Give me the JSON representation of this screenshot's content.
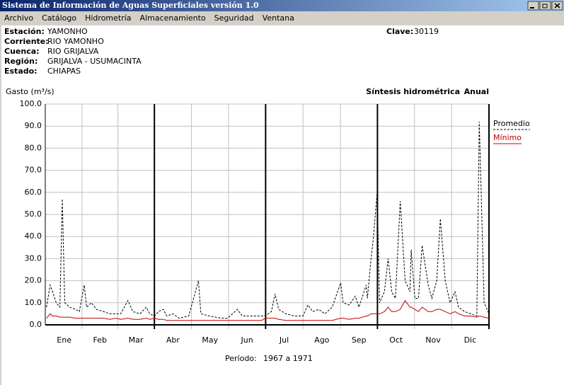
{
  "window": {
    "title": "Sistema de Información de Aguas Superficiales  versión 1.0",
    "menu": [
      "Archivo",
      "Catálogo",
      "Hidrometría",
      "Almacenamiento",
      "Seguridad",
      "Ventana"
    ]
  },
  "station": {
    "fields": [
      {
        "label": "Estación:",
        "value": "YAMONHO"
      },
      {
        "label": "Corriente:",
        "value": "RIO YAMONHO"
      },
      {
        "label": "Cuenca:",
        "value": "RIO GRIJALVA"
      },
      {
        "label": "Región:",
        "value": "GRIJALVA - USUMACINTA"
      },
      {
        "label": "Estado:",
        "value": "CHIAPAS"
      }
    ],
    "clave_label": "Clave:",
    "clave": "30119"
  },
  "chart_data": {
    "type": "line",
    "title": "Síntesis hidrométrica",
    "subtitle": "Anual",
    "y_label": "Gasto (m³/s)",
    "x": [
      1,
      4,
      6,
      9,
      12,
      14,
      16,
      20,
      25,
      28,
      32,
      34,
      38,
      42,
      48,
      53,
      58,
      62,
      68,
      72,
      78,
      83,
      86,
      90,
      93,
      97,
      100,
      105,
      110,
      118,
      126,
      128,
      135,
      145,
      150,
      158,
      162,
      170,
      178,
      181,
      186,
      189,
      192,
      198,
      205,
      212,
      216,
      220,
      225,
      230,
      236,
      243,
      245,
      250,
      255,
      258,
      264,
      265,
      268,
      270,
      273,
      275,
      279,
      282,
      285,
      288,
      292,
      296,
      300,
      301,
      304,
      307,
      310,
      315,
      318,
      322,
      325,
      329,
      333,
      337,
      340,
      345,
      350,
      355,
      357,
      361,
      365
    ],
    "series": [
      {
        "name": "Promedio",
        "color": "#000000",
        "line_style": "dashed",
        "values": [
          8,
          18,
          15,
          10,
          8,
          57,
          10,
          8,
          7,
          6,
          18,
          8,
          10,
          7,
          6,
          5,
          5,
          5,
          11,
          6,
          5,
          8,
          5,
          4,
          6,
          7,
          4,
          5,
          3,
          4,
          20,
          5,
          4,
          3,
          3,
          7,
          4,
          4,
          4,
          4,
          6,
          14,
          7,
          5,
          4,
          4,
          9,
          6,
          7,
          5,
          8,
          19,
          10,
          9,
          13,
          8,
          18,
          12,
          30,
          40,
          60,
          10,
          15,
          30,
          15,
          12,
          56,
          20,
          15,
          34,
          12,
          12,
          36,
          18,
          12,
          20,
          48,
          20,
          10,
          15,
          8,
          6,
          5,
          4,
          92,
          10,
          5
        ]
      },
      {
        "name": "Mínimo",
        "color": "#c00000",
        "line_style": "solid",
        "values": [
          3,
          5,
          4,
          4,
          3.5,
          3.5,
          3.5,
          3.5,
          3,
          3,
          3,
          3,
          3,
          3,
          3,
          2.5,
          3,
          2.5,
          3,
          2.5,
          2.5,
          3,
          2.5,
          3,
          2.5,
          2.5,
          2,
          2,
          2,
          2,
          2,
          2,
          2,
          2,
          2,
          2,
          2,
          2,
          2,
          3,
          3,
          3,
          2.5,
          2,
          2,
          2,
          2,
          2,
          2,
          2,
          2,
          3,
          3,
          2.5,
          3,
          3,
          4,
          4,
          5,
          5,
          5,
          5,
          6,
          8,
          6,
          6,
          7,
          11,
          8,
          8,
          7,
          6,
          8,
          6,
          6,
          7,
          7,
          6,
          5,
          6,
          5,
          4,
          4,
          3.5,
          4,
          3.5,
          3
        ]
      }
    ],
    "xlim": [
      0,
      365
    ],
    "xticks": [
      {
        "value": 15.5,
        "label": "Ene"
      },
      {
        "value": 45,
        "label": "Feb"
      },
      {
        "value": 74.5,
        "label": "Mar"
      },
      {
        "value": 105,
        "label": "Abr"
      },
      {
        "value": 135.5,
        "label": "May"
      },
      {
        "value": 166,
        "label": "Jun"
      },
      {
        "value": 196.5,
        "label": "Jul"
      },
      {
        "value": 227.5,
        "label": "Ago"
      },
      {
        "value": 258,
        "label": "Sep"
      },
      {
        "value": 288.5,
        "label": "Oct"
      },
      {
        "value": 319,
        "label": "Nov"
      },
      {
        "value": 349.5,
        "label": "Dic"
      }
    ],
    "ylim": [
      0,
      100
    ],
    "yticks": [
      {
        "value": 0,
        "label": "0.0"
      },
      {
        "value": 10,
        "label": "10.0"
      },
      {
        "value": 20,
        "label": "20.0"
      },
      {
        "value": 30,
        "label": "30.0"
      },
      {
        "value": 40,
        "label": "40.0"
      },
      {
        "value": 50,
        "label": "50.0"
      },
      {
        "value": 60,
        "label": "60.0"
      },
      {
        "value": 70,
        "label": "70.0"
      },
      {
        "value": 80,
        "label": "80.0"
      },
      {
        "value": 90,
        "label": "90.0"
      },
      {
        "value": 100,
        "label": "100.0"
      }
    ],
    "grid": true
  },
  "period": {
    "label": "Período:",
    "value": "1967 a 1971"
  }
}
